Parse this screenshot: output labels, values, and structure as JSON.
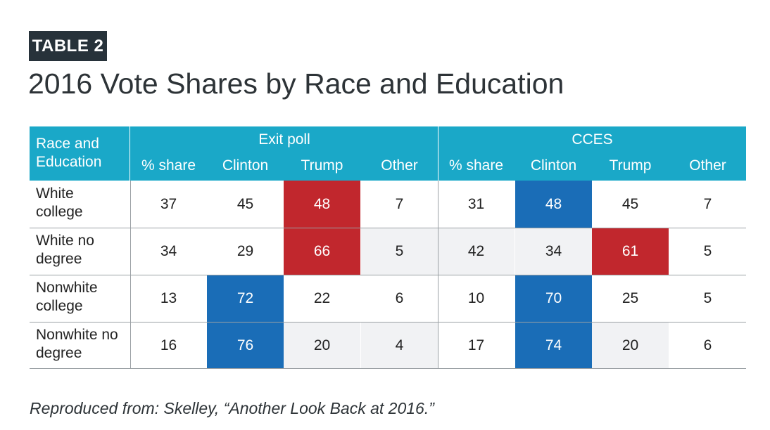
{
  "tag": "TABLE 2",
  "title": "2016 Vote Shares by Race and Education",
  "table": {
    "corner_header": [
      "Race and",
      "Education"
    ],
    "groups": [
      "Exit poll",
      "CCES"
    ],
    "subheaders": [
      "% share",
      "Clinton",
      "Trump",
      "Other",
      "% share",
      "Clinton",
      "Trump",
      "Other"
    ],
    "rows": [
      {
        "label": [
          "White",
          "college"
        ],
        "values": [
          "37",
          "45",
          "48",
          "7",
          "31",
          "48",
          "45",
          "7"
        ],
        "styles": [
          "",
          "",
          "red",
          "",
          "",
          "blue",
          "",
          ""
        ]
      },
      {
        "label": [
          "White no",
          "degree"
        ],
        "values": [
          "34",
          "29",
          "66",
          "5",
          "42",
          "34",
          "61",
          "5"
        ],
        "styles": [
          "",
          "",
          "red",
          "grey",
          "grey",
          "grey",
          "red",
          ""
        ]
      },
      {
        "label": [
          "Nonwhite",
          "college"
        ],
        "values": [
          "13",
          "72",
          "22",
          "6",
          "10",
          "70",
          "25",
          "5"
        ],
        "styles": [
          "",
          "blue",
          "",
          "",
          "",
          "blue",
          "",
          ""
        ]
      },
      {
        "label": [
          "Nonwhite no",
          "degree"
        ],
        "values": [
          "16",
          "76",
          "20",
          "4",
          "17",
          "74",
          "20",
          "6"
        ],
        "styles": [
          "",
          "blue",
          "grey",
          "grey",
          "",
          "blue",
          "grey",
          ""
        ]
      }
    ]
  },
  "colors": {
    "header": "#1aa8c8",
    "clinton_blue": "#1a6db7",
    "trump_red": "#c1272d",
    "tag_bg": "#27323a"
  },
  "source": "Reproduced from: Skelley, “Another Look Back at 2016.”"
}
